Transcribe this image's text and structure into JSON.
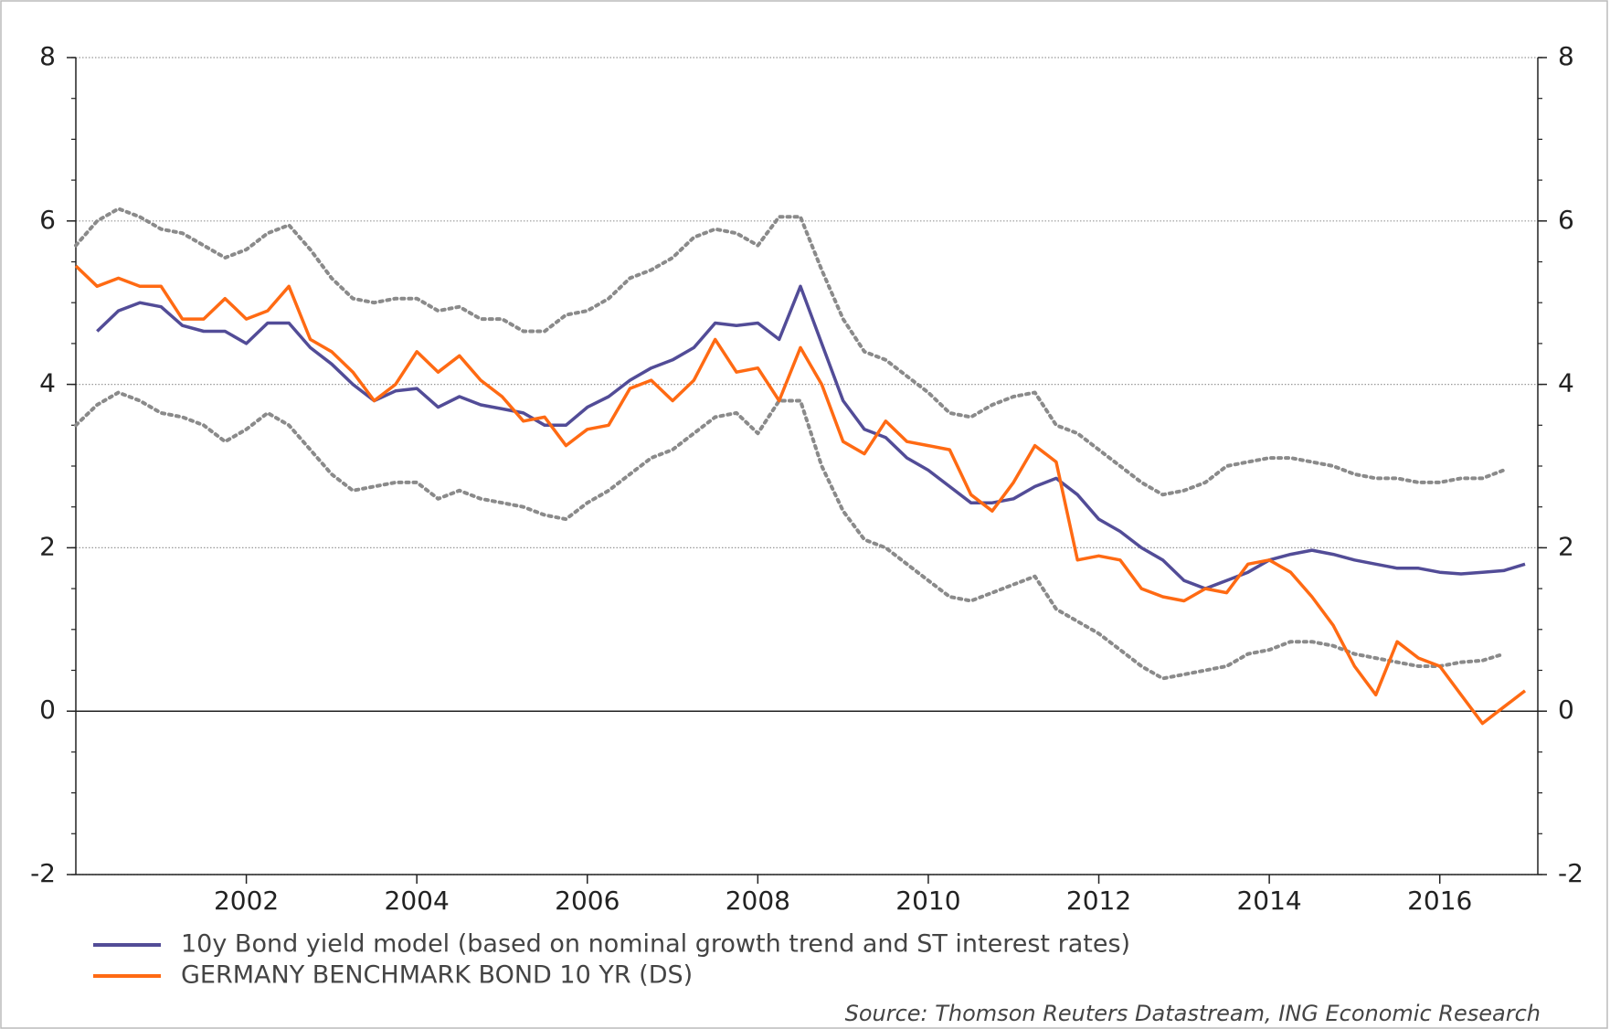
{
  "chart_data": {
    "type": "line",
    "source": "Source: Thomson Reuters Datastream, ING Economic Research",
    "x": [
      2000,
      2000.25,
      2000.5,
      2000.75,
      2001,
      2001.25,
      2001.5,
      2001.75,
      2002,
      2002.25,
      2002.5,
      2002.75,
      2003,
      2003.25,
      2003.5,
      2003.75,
      2004,
      2004.25,
      2004.5,
      2004.75,
      2005,
      2005.25,
      2005.5,
      2005.75,
      2006,
      2006.25,
      2006.5,
      2006.75,
      2007,
      2007.25,
      2007.5,
      2007.75,
      2008,
      2008.25,
      2008.5,
      2008.75,
      2009,
      2009.25,
      2009.5,
      2009.75,
      2010,
      2010.25,
      2010.5,
      2010.75,
      2011,
      2011.25,
      2011.5,
      2011.75,
      2012,
      2012.25,
      2012.5,
      2012.75,
      2013,
      2013.25,
      2013.5,
      2013.75,
      2014,
      2014.25,
      2014.5,
      2014.75,
      2015,
      2015.25,
      2015.5,
      2015.75,
      2016,
      2016.25,
      2016.5,
      2016.75,
      2017
    ],
    "series": [
      {
        "color": "#8a8a8a",
        "dotted": true,
        "values": [
          5.7,
          6.0,
          6.15,
          6.05,
          5.9,
          5.85,
          5.7,
          5.55,
          5.65,
          5.85,
          5.95,
          5.65,
          5.3,
          5.05,
          5.0,
          5.05,
          5.05,
          4.9,
          4.95,
          4.8,
          4.8,
          4.65,
          4.65,
          4.85,
          4.9,
          5.05,
          5.3,
          5.4,
          5.55,
          5.8,
          5.9,
          5.85,
          5.7,
          6.05,
          6.05,
          5.4,
          4.8,
          4.4,
          4.3,
          4.1,
          3.9,
          3.65,
          3.6,
          3.75,
          3.85,
          3.9,
          3.5,
          3.4,
          3.2,
          3.0,
          2.8,
          2.65,
          2.7,
          2.8,
          3.0,
          3.05,
          3.1,
          3.1,
          3.05,
          3.0,
          2.9,
          2.85,
          2.85,
          2.8,
          2.8,
          2.85,
          2.85,
          2.95,
          null
        ]
      },
      {
        "color": "#8a8a8a",
        "dotted": true,
        "values": [
          3.5,
          3.75,
          3.9,
          3.8,
          3.65,
          3.6,
          3.5,
          3.3,
          3.45,
          3.65,
          3.5,
          3.2,
          2.9,
          2.7,
          2.75,
          2.8,
          2.8,
          2.6,
          2.7,
          2.6,
          2.55,
          2.5,
          2.4,
          2.35,
          2.55,
          2.7,
          2.9,
          3.1,
          3.2,
          3.4,
          3.6,
          3.65,
          3.4,
          3.8,
          3.8,
          3.0,
          2.45,
          2.1,
          2.0,
          1.8,
          1.6,
          1.4,
          1.35,
          1.45,
          1.55,
          1.65,
          1.25,
          1.1,
          0.95,
          0.75,
          0.55,
          0.4,
          0.45,
          0.5,
          0.55,
          0.7,
          0.75,
          0.85,
          0.85,
          0.8,
          0.7,
          0.65,
          0.6,
          0.55,
          0.55,
          0.6,
          0.62,
          0.7,
          null
        ]
      },
      {
        "name": "10y Bond yield model (based on nominal growth trend and ST interest rates)",
        "color": "#524c97",
        "values": [
          null,
          4.65,
          4.9,
          5.0,
          4.95,
          4.72,
          4.65,
          4.65,
          4.5,
          4.75,
          4.75,
          4.45,
          4.25,
          4.0,
          3.8,
          3.92,
          3.95,
          3.72,
          3.85,
          3.75,
          3.7,
          3.65,
          3.5,
          3.5,
          3.72,
          3.85,
          4.05,
          4.2,
          4.3,
          4.45,
          4.75,
          4.72,
          4.75,
          4.55,
          5.2,
          4.5,
          3.8,
          3.45,
          3.35,
          3.1,
          2.95,
          2.75,
          2.55,
          2.55,
          2.6,
          2.75,
          2.85,
          2.65,
          2.35,
          2.2,
          2.0,
          1.85,
          1.6,
          1.5,
          1.6,
          1.7,
          1.85,
          1.92,
          1.97,
          1.92,
          1.85,
          1.8,
          1.75,
          1.75,
          1.7,
          1.68,
          1.7,
          1.72,
          1.8
        ]
      },
      {
        "name": "GERMANY BENCHMARK BOND 10 YR (DS)",
        "color": "#ff6a13",
        "values": [
          5.45,
          5.2,
          5.3,
          5.2,
          5.2,
          4.8,
          4.8,
          5.05,
          4.8,
          4.9,
          5.2,
          4.55,
          4.4,
          4.15,
          3.8,
          4.0,
          4.4,
          4.15,
          4.35,
          4.05,
          3.85,
          3.55,
          3.6,
          3.25,
          3.45,
          3.5,
          3.95,
          4.05,
          3.8,
          4.05,
          4.55,
          4.15,
          4.2,
          3.8,
          4.45,
          4.0,
          3.3,
          3.15,
          3.55,
          3.3,
          3.25,
          3.2,
          2.65,
          2.45,
          2.8,
          3.25,
          3.05,
          1.85,
          1.9,
          1.85,
          1.5,
          1.4,
          1.35,
          1.5,
          1.45,
          1.8,
          1.85,
          1.7,
          1.4,
          1.05,
          0.55,
          0.2,
          0.85,
          0.65,
          0.55,
          0.2,
          -0.15,
          0.05,
          0.25
        ]
      }
    ],
    "xlim": [
      2000,
      2017.15
    ],
    "xticks": [
      2002,
      2004,
      2006,
      2008,
      2010,
      2012,
      2014,
      2016
    ],
    "ylim": [
      -2,
      8
    ],
    "yticks": [
      -2,
      0,
      2,
      4,
      6,
      8
    ],
    "grid": true
  }
}
